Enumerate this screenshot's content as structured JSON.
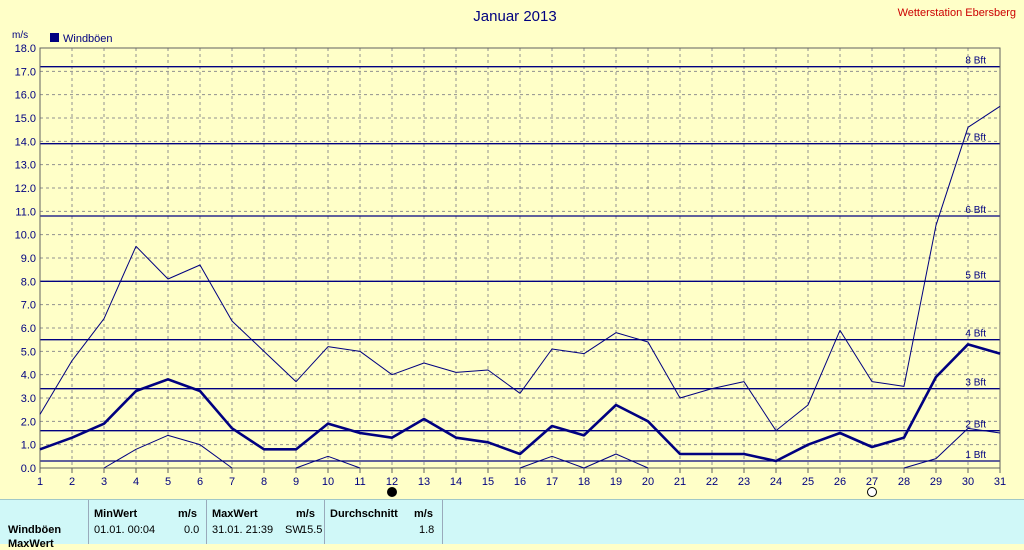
{
  "chart_data": {
    "type": "line",
    "title": "Januar 2013",
    "station": "Wetterstation Ebersberg",
    "ylabel": "m/s",
    "legend": [
      {
        "label": "Windböen",
        "color": "#000080"
      }
    ],
    "ylim": [
      0,
      18
    ],
    "yticks": [
      "0.0",
      "1.0",
      "2.0",
      "3.0",
      "4.0",
      "5.0",
      "6.0",
      "7.0",
      "8.0",
      "9.0",
      "10.0",
      "11.0",
      "12.0",
      "13.0",
      "14.0",
      "15.0",
      "16.0",
      "17.0",
      "18.0"
    ],
    "x": [
      1,
      2,
      3,
      4,
      5,
      6,
      7,
      8,
      9,
      10,
      11,
      12,
      13,
      14,
      15,
      16,
      17,
      18,
      19,
      20,
      21,
      22,
      23,
      24,
      25,
      26,
      27,
      28,
      29,
      30,
      31
    ],
    "series": [
      {
        "name": "Windböen",
        "role": "mean",
        "values": [
          0.8,
          1.3,
          1.9,
          3.3,
          3.8,
          3.3,
          1.7,
          0.8,
          0.8,
          1.9,
          1.5,
          1.3,
          2.1,
          1.3,
          1.1,
          0.6,
          1.8,
          1.4,
          2.7,
          2.0,
          0.6,
          0.6,
          0.6,
          0.3,
          1.0,
          1.5,
          0.9,
          1.3,
          3.9,
          5.3,
          4.9
        ]
      },
      {
        "name": "",
        "role": "max",
        "values": [
          2.3,
          4.6,
          6.4,
          9.5,
          8.1,
          8.7,
          6.3,
          5.0,
          3.7,
          5.2,
          5.0,
          4.0,
          4.5,
          4.1,
          4.2,
          3.2,
          5.1,
          4.9,
          5.8,
          5.4,
          3.0,
          3.4,
          3.7,
          1.6,
          2.7,
          5.9,
          3.7,
          3.5,
          10.4,
          14.6,
          15.5
        ]
      },
      {
        "name": "",
        "role": "min",
        "values": [
          null,
          null,
          0.0,
          0.8,
          1.4,
          1.0,
          0.0,
          null,
          0.0,
          0.5,
          0.0,
          null,
          null,
          null,
          null,
          0.0,
          0.5,
          0.0,
          0.6,
          0.0,
          null,
          null,
          null,
          null,
          null,
          null,
          null,
          0.0,
          0.4,
          1.7,
          1.5
        ]
      }
    ],
    "beaufort": [
      {
        "label": "1 Bft",
        "value": 0.3
      },
      {
        "label": "2 Bft",
        "value": 1.6
      },
      {
        "label": "3 Bft",
        "value": 3.4
      },
      {
        "label": "4 Bft",
        "value": 5.5
      },
      {
        "label": "5 Bft",
        "value": 8.0
      },
      {
        "label": "6 Bft",
        "value": 10.8
      },
      {
        "label": "7 Bft",
        "value": 13.9
      },
      {
        "label": "8 Bft",
        "value": 17.2
      }
    ],
    "moon": [
      {
        "day": 12,
        "phase": "new"
      },
      {
        "day": 27,
        "phase": "full"
      }
    ],
    "grid": true
  },
  "stats": {
    "row_label": "Windböen",
    "row2_label": "MaxWert",
    "min_header": "MinWert",
    "max_header": "MaxWert",
    "avg_header": "Durchschnitt",
    "unit": "m/s",
    "min_time": "01.01.  00:04",
    "min_value": "0.0",
    "max_time": "31.01.  21:39",
    "max_dir": "SW",
    "max_value": "15.5",
    "avg_value": "1.8"
  },
  "colors": {
    "background": "#ffffc8",
    "line": "#000080",
    "title": "#000080",
    "station": "#cc0000",
    "grid": "#909090"
  }
}
